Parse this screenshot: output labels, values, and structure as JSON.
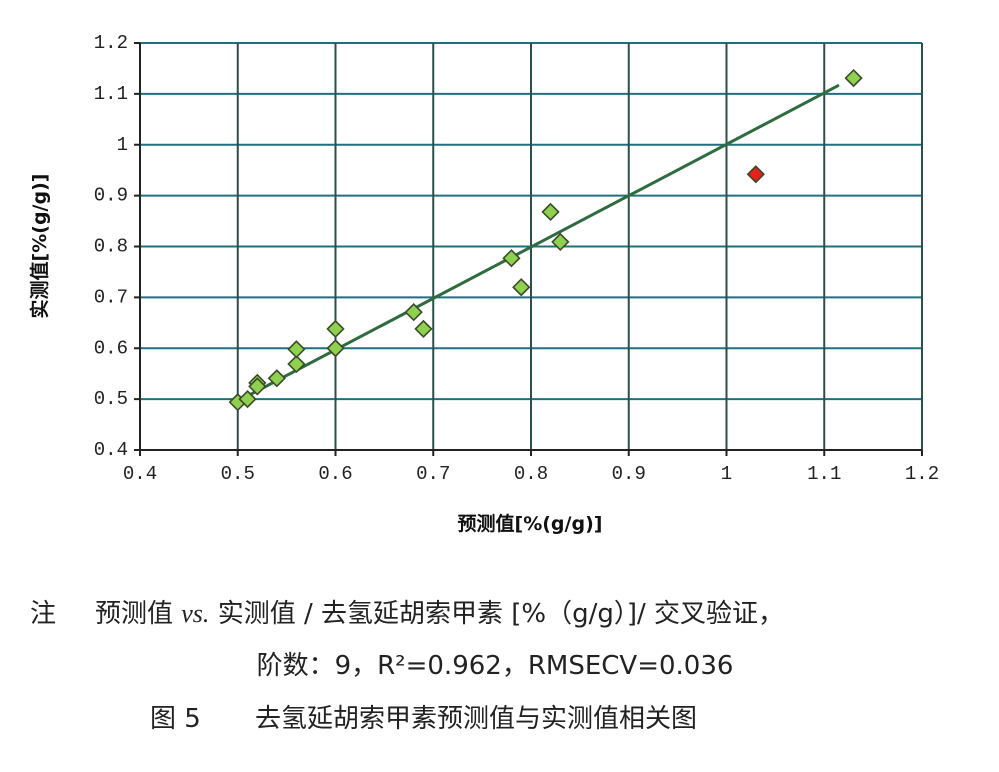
{
  "chart_data": {
    "type": "scatter",
    "x_label": "预测值[%(g/g)]",
    "y_label": "实测值[%(g/g)]",
    "xlim": [
      0.4,
      1.2
    ],
    "ylim": [
      0.4,
      1.2
    ],
    "xticks": [
      0.4,
      0.5,
      0.6,
      0.7,
      0.8,
      0.9,
      1,
      1.1,
      1.2
    ],
    "yticks": [
      0.4,
      0.5,
      0.6,
      0.7,
      0.8,
      0.9,
      1,
      1.1,
      1.2
    ],
    "grid": true,
    "series": [
      {
        "color": "#8fd14f",
        "x": [
          0.5,
          0.51,
          0.52,
          0.52,
          0.54,
          0.56,
          0.56,
          0.6,
          0.6,
          0.68,
          0.69,
          0.78,
          0.79,
          0.82,
          0.83,
          1.13
        ],
        "values": [
          0.494,
          0.5,
          0.532,
          0.525,
          0.541,
          0.569,
          0.598,
          0.6,
          0.638,
          0.671,
          0.638,
          0.777,
          0.72,
          0.868,
          0.809,
          1.131
        ]
      },
      {
        "color": "#e8201c",
        "x": [
          1.03
        ],
        "values": [
          0.942
        ]
      }
    ],
    "fit_line": {
      "color": "#2e6b3e",
      "x": [
        0.5,
        1.115
      ],
      "values": [
        0.496,
        1.117
      ]
    }
  },
  "caption": {
    "note_label": "注",
    "line1_a": "预测值 ",
    "line1_vs": "vs.",
    "line1_b": " 实测值 / 去氢延胡索甲素 [%（g/g）]/ 交叉验证，",
    "line2": "阶数：9，R²=0.962，RMSECV=0.036",
    "figure_label": "图 5",
    "figure_title": "去氢延胡索甲素预测值与实测值相关图"
  }
}
